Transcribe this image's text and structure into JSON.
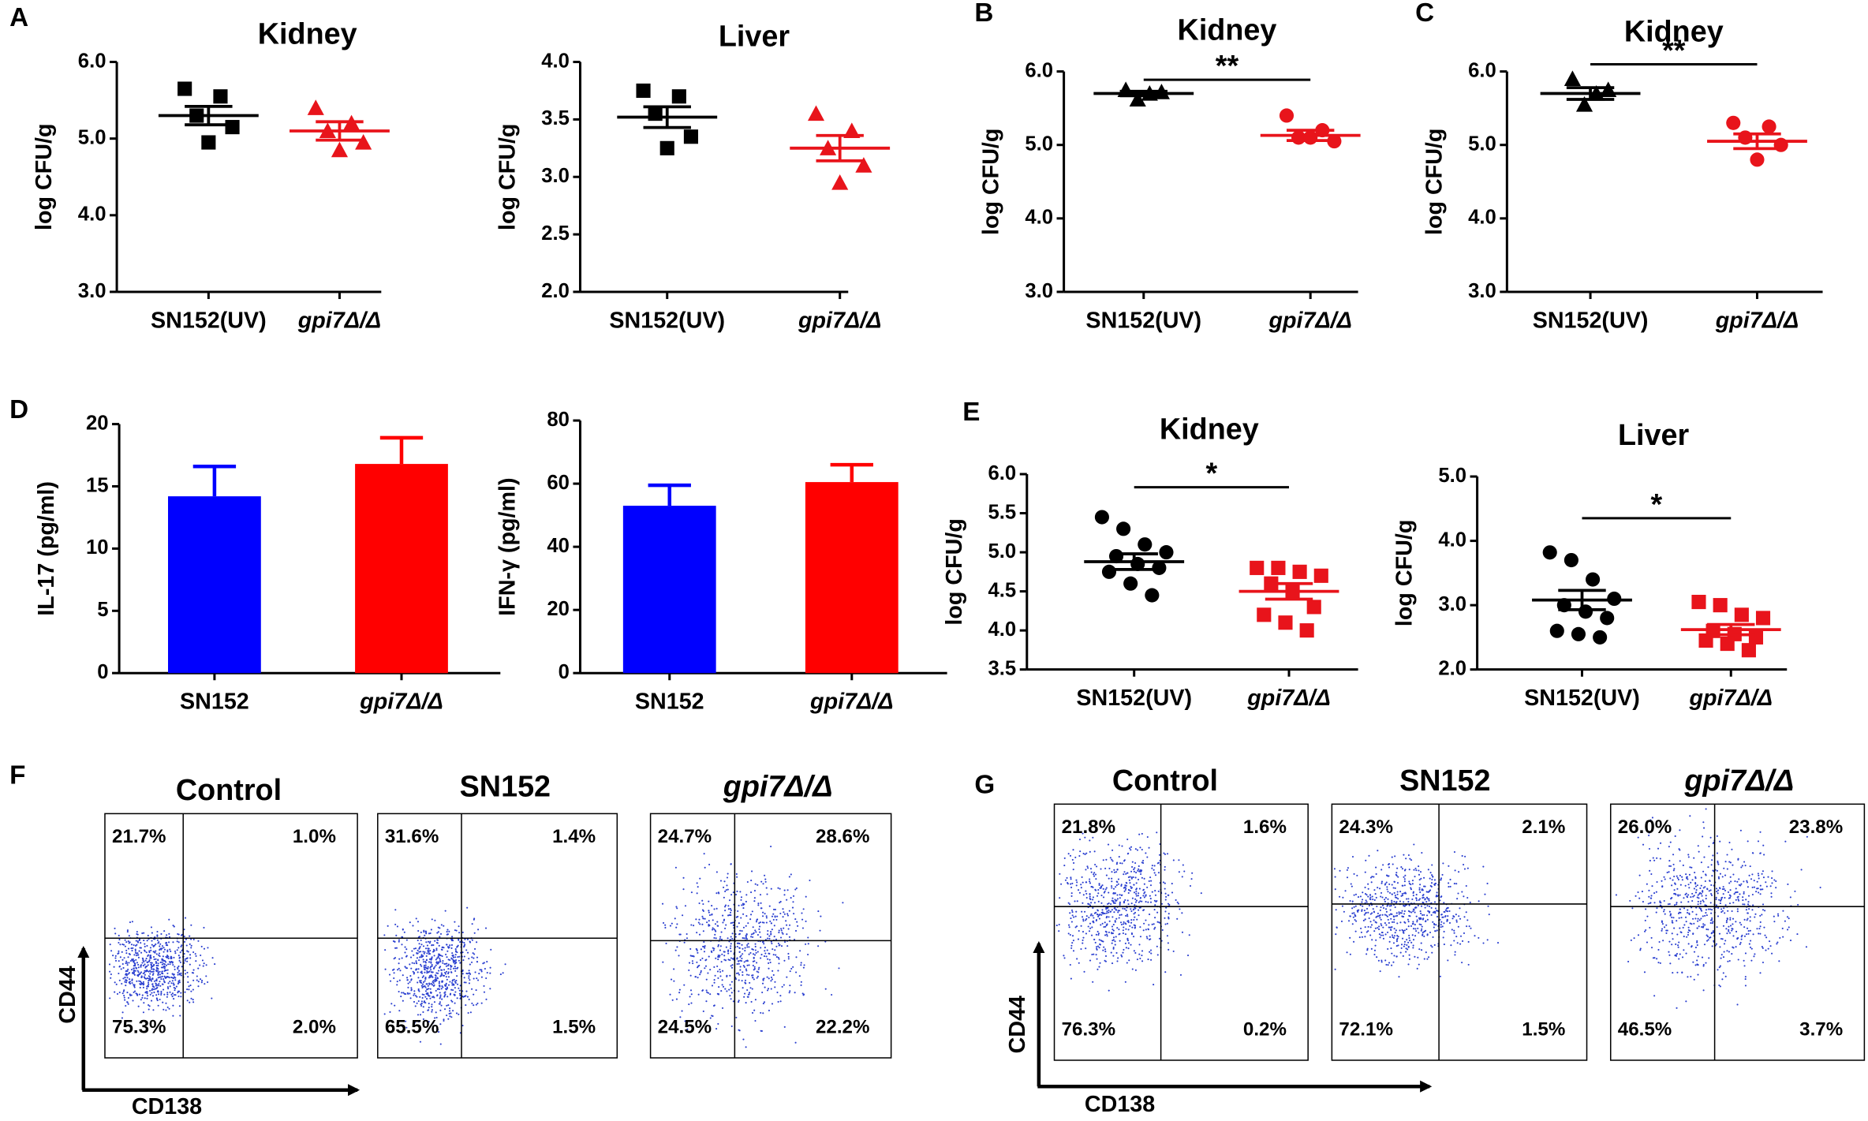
{
  "chart_data": [
    {
      "type": "dotplot",
      "panel": "A",
      "title": "Kidney",
      "ylabel": "log CFU/g",
      "categories": [
        "SN152(UV)",
        "gpi7Δ/Δ"
      ],
      "ylim": [
        3,
        6
      ],
      "yticks": [
        {
          "value": 3,
          "label": "3.0"
        },
        {
          "value": 4,
          "label": "4.0"
        },
        {
          "value": 5,
          "label": "5.0"
        },
        {
          "value": 6,
          "label": "6.0"
        }
      ],
      "groups": [
        {
          "color": "#000000",
          "marker": "square",
          "values": [
            5.65,
            5.55,
            5.3,
            5.15,
            4.95
          ],
          "mean": 5.3,
          "sem": 0.12
        },
        {
          "color": "#e8141b",
          "marker": "triangle",
          "values": [
            5.4,
            5.2,
            5.1,
            4.95,
            4.85
          ],
          "mean": 5.1,
          "sem": 0.12
        }
      ]
    },
    {
      "type": "dotplot",
      "title": "Liver",
      "ylabel": "log CFU/g",
      "categories": [
        "SN152(UV)",
        "gpi7Δ/Δ"
      ],
      "ylim": [
        2,
        4
      ],
      "yticks": [
        {
          "value": 2,
          "label": "2.0"
        },
        2.5,
        {
          "value": 3,
          "label": "3.0"
        },
        3.5,
        {
          "value": 4,
          "label": "4.0"
        }
      ],
      "groups": [
        {
          "color": "#000000",
          "marker": "square",
          "values": [
            3.75,
            3.7,
            3.55,
            3.35,
            3.25
          ],
          "mean": 3.52,
          "sem": 0.09
        },
        {
          "color": "#e8141b",
          "marker": "triangle",
          "values": [
            3.55,
            3.4,
            3.25,
            3.1,
            2.95
          ],
          "mean": 3.25,
          "sem": 0.11
        }
      ]
    },
    {
      "type": "dotplot",
      "panel": "B",
      "title": "Kidney",
      "ylabel": "log CFU/g",
      "categories": [
        "SN152(UV)",
        "gpi7Δ/Δ"
      ],
      "ylim": [
        3,
        6
      ],
      "yticks": [
        {
          "value": 3,
          "label": "3.0"
        },
        {
          "value": 4,
          "label": "4.0"
        },
        {
          "value": 5,
          "label": "5.0"
        },
        {
          "value": 6,
          "label": "6.0"
        }
      ],
      "significance": "**",
      "groups": [
        {
          "color": "#000000",
          "marker": "triangle",
          "values": [
            5.75,
            5.72,
            5.7,
            5.62
          ],
          "mean": 5.7,
          "sem": 0.03
        },
        {
          "color": "#e8141b",
          "marker": "circle",
          "values": [
            5.4,
            5.2,
            5.1,
            5.05,
            5.1
          ],
          "mean": 5.13,
          "sem": 0.07
        }
      ]
    },
    {
      "type": "dotplot",
      "panel": "C",
      "title": "Kidney",
      "ylabel": "log CFU/g",
      "categories": [
        "SN152(UV)",
        "gpi7Δ/Δ"
      ],
      "ylim": [
        3,
        6
      ],
      "yticks": [
        {
          "value": 3,
          "label": "3.0"
        },
        {
          "value": 4,
          "label": "4.0"
        },
        {
          "value": 5,
          "label": "5.0"
        },
        {
          "value": 6,
          "label": "6.0"
        }
      ],
      "significance": "**",
      "groups": [
        {
          "color": "#000000",
          "marker": "triangle",
          "values": [
            5.9,
            5.75,
            5.7,
            5.55
          ],
          "mean": 5.7,
          "sem": 0.08
        },
        {
          "color": "#e8141b",
          "marker": "circle",
          "values": [
            5.3,
            5.25,
            5.1,
            5.0,
            4.8
          ],
          "mean": 5.05,
          "sem": 0.1
        }
      ]
    },
    {
      "type": "bar",
      "panel": "D",
      "ylabel": "IL-17 (pg/ml)",
      "categories": [
        "SN152",
        "gpi7Δ/Δ"
      ],
      "ylim": [
        0,
        20
      ],
      "yticks": [
        0,
        5,
        10,
        15,
        20
      ],
      "colors": [
        "#0000ff",
        "#ff0000"
      ],
      "values": [
        14.2,
        16.8
      ],
      "errors": [
        2.4,
        2.1
      ]
    },
    {
      "type": "bar",
      "ylabel": "IFN-γ (pg/ml)",
      "categories": [
        "SN152",
        "gpi7Δ/Δ"
      ],
      "ylim": [
        0,
        80
      ],
      "yticks": [
        0,
        20,
        40,
        60,
        80
      ],
      "colors": [
        "#0000ff",
        "#ff0000"
      ],
      "values": [
        53,
        60.5
      ],
      "errors": [
        6.5,
        5.5
      ]
    },
    {
      "type": "dotplot",
      "panel": "E",
      "title": "Kidney",
      "ylabel": "log CFU/g",
      "categories": [
        "SN152(UV)",
        "gpi7Δ/Δ"
      ],
      "ylim": [
        3.5,
        6
      ],
      "yticks": [
        3.5,
        {
          "value": 4,
          "label": "4.0"
        },
        4.5,
        {
          "value": 5,
          "label": "5.0"
        },
        5.5,
        {
          "value": 6,
          "label": "6.0"
        }
      ],
      "significance": "*",
      "groups": [
        {
          "color": "#000000",
          "marker": "circle",
          "values": [
            5.45,
            5.3,
            5.1,
            5.0,
            4.95,
            4.85,
            4.8,
            4.75,
            4.6,
            4.45
          ],
          "mean": 4.88,
          "sem": 0.1
        },
        {
          "color": "#e8141b",
          "marker": "square",
          "values": [
            4.8,
            4.8,
            4.75,
            4.7,
            4.6,
            4.5,
            4.3,
            4.2,
            4.1,
            4.0
          ],
          "mean": 4.5,
          "sem": 0.1
        }
      ]
    },
    {
      "type": "dotplot",
      "title": "Liver",
      "ylabel": "log CFU/g",
      "categories": [
        "SN152(UV)",
        "gpi7Δ/Δ"
      ],
      "ylim": [
        2,
        5
      ],
      "yticks": [
        {
          "value": 2,
          "label": "2.0"
        },
        {
          "value": 3,
          "label": "3.0"
        },
        {
          "value": 4,
          "label": "4.0"
        },
        {
          "value": 5,
          "label": "5.0"
        }
      ],
      "significance": "*",
      "groups": [
        {
          "color": "#000000",
          "marker": "circle",
          "values": [
            3.82,
            3.7,
            3.4,
            3.1,
            3.0,
            2.9,
            2.8,
            2.6,
            2.55,
            2.5
          ],
          "mean": 3.08,
          "sem": 0.15
        },
        {
          "color": "#e8141b",
          "marker": "square",
          "values": [
            3.05,
            3.0,
            2.85,
            2.8,
            2.6,
            2.55,
            2.5,
            2.45,
            2.4,
            2.3
          ],
          "mean": 2.62,
          "sem": 0.08
        }
      ]
    },
    {
      "type": "flow",
      "panel": "F",
      "title": "Control",
      "xlabel": "CD138",
      "ylabel": "CD44",
      "quadrants": [
        "21.7%",
        "1.0%",
        "75.3%",
        "2.0%"
      ]
    },
    {
      "type": "flow",
      "title": "SN152",
      "quadrants": [
        "31.6%",
        "1.4%",
        "65.5%",
        "1.5%"
      ]
    },
    {
      "type": "flow",
      "title": "gpi7Δ/Δ",
      "quadrants": [
        "24.7%",
        "28.6%",
        "24.5%",
        "22.2%"
      ]
    },
    {
      "type": "flow",
      "panel": "G",
      "title": "Control",
      "xlabel": "CD138",
      "ylabel": "CD44",
      "quadrants": [
        "21.8%",
        "1.6%",
        "76.3%",
        "0.2%"
      ]
    },
    {
      "type": "flow",
      "title": "SN152",
      "quadrants": [
        "24.3%",
        "2.1%",
        "72.1%",
        "1.5%"
      ]
    },
    {
      "type": "flow",
      "title": "gpi7Δ/Δ",
      "quadrants": [
        "26.0%",
        "23.8%",
        "46.5%",
        "3.7%"
      ]
    }
  ]
}
